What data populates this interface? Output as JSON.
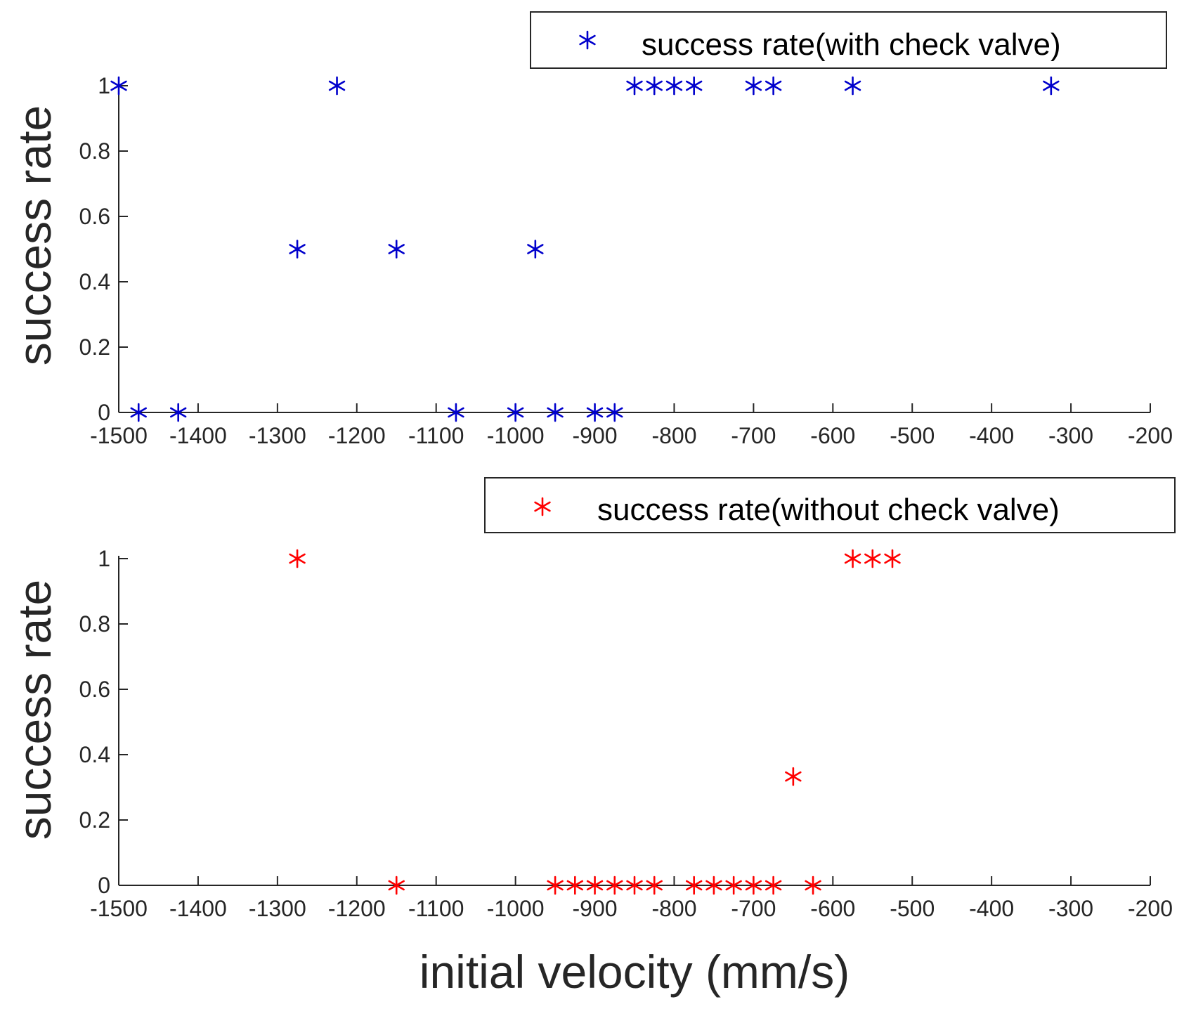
{
  "chart_data": [
    {
      "type": "scatter",
      "title": "",
      "xlabel": "",
      "ylabel": "success rate",
      "xlim": [
        -1500,
        -200
      ],
      "ylim": [
        0,
        1
      ],
      "xticks": [
        -1500,
        -1400,
        -1300,
        -1200,
        -1100,
        -1000,
        -900,
        -800,
        -700,
        -600,
        -500,
        -400,
        -300,
        -200
      ],
      "xtick_labels": [
        "-1500",
        "-1400",
        "-1300",
        "-1200",
        "-1100",
        "-1000",
        "-900",
        "-800",
        "-700",
        "-600",
        "-500",
        "-400",
        "-300",
        "-200"
      ],
      "yticks": [
        0,
        0.2,
        0.4,
        0.6,
        0.8,
        1
      ],
      "ytick_labels": [
        "0",
        "0.2",
        "0.4",
        "0.6",
        "0.8",
        "1"
      ],
      "grid": false,
      "legend_position": "top-right",
      "series": [
        {
          "name": "success rate(with check valve)",
          "marker": "asterisk",
          "color": "#0000cc",
          "x": [
            -1500,
            -1475,
            -1425,
            -1275,
            -1225,
            -1150,
            -1075,
            -1000,
            -975,
            -950,
            -900,
            -875,
            -850,
            -825,
            -800,
            -775,
            -700,
            -675,
            -575,
            -325
          ],
          "y": [
            1,
            0,
            0,
            0.5,
            1,
            0.5,
            0,
            0,
            0.5,
            0,
            0,
            0,
            1,
            1,
            1,
            1,
            1,
            1,
            1,
            1
          ]
        }
      ]
    },
    {
      "type": "scatter",
      "title": "",
      "xlabel": "initial velocity (mm/s)",
      "ylabel": "success rate",
      "xlim": [
        -1500,
        -200
      ],
      "ylim": [
        0,
        1
      ],
      "xticks": [
        -1500,
        -1400,
        -1300,
        -1200,
        -1100,
        -1000,
        -900,
        -800,
        -700,
        -600,
        -500,
        -400,
        -300,
        -200
      ],
      "xtick_labels": [
        "-1500",
        "-1400",
        "-1300",
        "-1200",
        "-1100",
        "-1000",
        "-900",
        "-800",
        "-700",
        "-600",
        "-500",
        "-400",
        "-300",
        "-200"
      ],
      "yticks": [
        0,
        0.2,
        0.4,
        0.6,
        0.8,
        1
      ],
      "ytick_labels": [
        "0",
        "0.2",
        "0.4",
        "0.6",
        "0.8",
        "1"
      ],
      "grid": false,
      "legend_position": "top-right",
      "series": [
        {
          "name": "success rate(without check valve)",
          "marker": "asterisk",
          "color": "#ff0000",
          "x": [
            -1275,
            -1150,
            -950,
            -925,
            -900,
            -875,
            -850,
            -825,
            -775,
            -750,
            -725,
            -700,
            -675,
            -650,
            -625,
            -575,
            -550,
            -525
          ],
          "y": [
            1,
            0,
            0,
            0,
            0,
            0,
            0,
            0,
            0,
            0,
            0,
            0,
            0,
            0.333,
            0,
            1,
            1,
            1
          ]
        }
      ]
    }
  ]
}
